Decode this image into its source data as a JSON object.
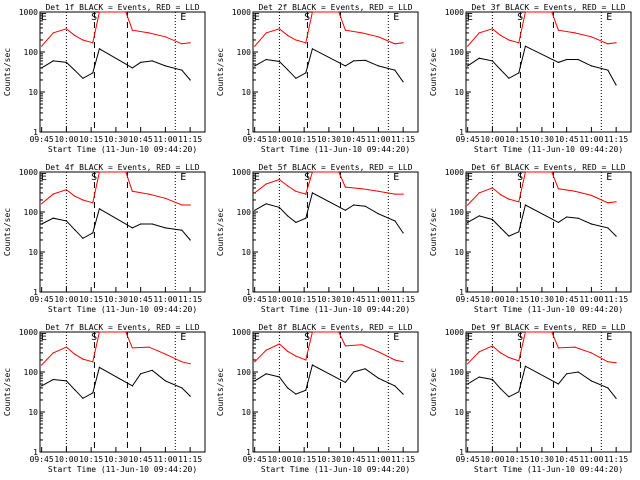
{
  "chart_data": [
    {
      "type": "line",
      "title": "Det 1f BLACK = Events, RED = LLD",
      "ylabel": "Counts/sec",
      "xlabel": "Start Time (11-Jun-10 09:44:20)",
      "x_ticks": [
        "09:45",
        "10:00",
        "10:15",
        "10:30",
        "10:45",
        "11:00",
        "11:15"
      ],
      "y_ticks": [
        "1",
        "10",
        "100",
        "1000"
      ],
      "yscale": "log",
      "ylim": [
        1,
        1000
      ],
      "markers": [
        "E",
        "S",
        "E"
      ],
      "series": [
        {
          "color": "#ff0000",
          "x": [
            "09:45",
            "09:52",
            "10:00",
            "10:05",
            "10:10",
            "10:16",
            "10:20",
            "10:36",
            "10:40",
            "10:50",
            "11:00",
            "11:10",
            "11:15"
          ],
          "values": [
            140,
            300,
            380,
            260,
            200,
            170,
            1000,
            1000,
            350,
            300,
            240,
            160,
            170
          ]
        },
        {
          "color": "#000000",
          "x": [
            "09:45",
            "09:52",
            "10:00",
            "10:05",
            "10:10",
            "10:16",
            "10:20",
            "10:40",
            "10:45",
            "10:52",
            "11:00",
            "11:10",
            "11:15"
          ],
          "values": [
            40,
            60,
            55,
            35,
            22,
            30,
            120,
            40,
            55,
            60,
            45,
            35,
            20
          ]
        }
      ]
    },
    {
      "type": "line",
      "title": "Det 2f BLACK = Events, RED = LLD",
      "ylabel": "Counts/sec",
      "xlabel": "Start Time (11-Jun-10 09:44:20)",
      "x_ticks": [
        "09:45",
        "10:00",
        "10:15",
        "10:30",
        "10:45",
        "11:00",
        "11:15"
      ],
      "y_ticks": [
        "1",
        "10",
        "100",
        "1000"
      ],
      "yscale": "log",
      "ylim": [
        1,
        1000
      ],
      "markers": [
        "E",
        "S",
        "E"
      ],
      "series": [
        {
          "color": "#ff0000",
          "x": [
            "09:45",
            "09:52",
            "10:00",
            "10:05",
            "10:10",
            "10:16",
            "10:20",
            "10:36",
            "10:40",
            "10:50",
            "11:00",
            "11:10",
            "11:15"
          ],
          "values": [
            140,
            300,
            380,
            260,
            200,
            170,
            1000,
            1000,
            350,
            300,
            240,
            160,
            170
          ]
        },
        {
          "color": "#000000",
          "x": [
            "09:45",
            "09:52",
            "10:00",
            "10:05",
            "10:10",
            "10:16",
            "10:20",
            "10:40",
            "10:45",
            "10:52",
            "11:00",
            "11:10",
            "11:15"
          ],
          "values": [
            45,
            65,
            58,
            36,
            22,
            30,
            120,
            45,
            60,
            62,
            45,
            35,
            18
          ]
        }
      ]
    },
    {
      "type": "line",
      "title": "Det 3f BLACK = Events, RED = LLD",
      "ylabel": "Counts/sec",
      "xlabel": "Start Time (11-Jun-10 09:44:20)",
      "x_ticks": [
        "09:45",
        "10:00",
        "10:15",
        "10:30",
        "10:45",
        "11:00",
        "11:15"
      ],
      "y_ticks": [
        "1",
        "10",
        "100",
        "1000"
      ],
      "yscale": "log",
      "ylim": [
        1,
        1000
      ],
      "markers": [
        "E",
        "S",
        "E"
      ],
      "series": [
        {
          "color": "#ff0000",
          "x": [
            "09:45",
            "09:52",
            "10:00",
            "10:05",
            "10:10",
            "10:16",
            "10:20",
            "10:36",
            "10:40",
            "10:50",
            "11:00",
            "11:10",
            "11:15"
          ],
          "values": [
            140,
            300,
            380,
            260,
            200,
            170,
            1000,
            1000,
            350,
            300,
            240,
            160,
            170
          ]
        },
        {
          "color": "#000000",
          "x": [
            "09:45",
            "09:52",
            "10:00",
            "10:05",
            "10:10",
            "10:16",
            "10:20",
            "10:40",
            "10:45",
            "10:52",
            "11:00",
            "11:10",
            "11:15"
          ],
          "values": [
            45,
            70,
            60,
            36,
            22,
            30,
            140,
            55,
            65,
            65,
            45,
            35,
            15
          ]
        }
      ]
    },
    {
      "type": "line",
      "title": "Det 4f BLACK = Events, RED = LLD",
      "ylabel": "Counts/sec",
      "xlabel": "Start Time (11-Jun-10 09:44:20)",
      "x_ticks": [
        "09:45",
        "10:00",
        "10:15",
        "10:30",
        "10:45",
        "11:00",
        "11:15"
      ],
      "y_ticks": [
        "1",
        "10",
        "100",
        "1000"
      ],
      "yscale": "log",
      "ylim": [
        1,
        1000
      ],
      "markers": [
        "E",
        "S",
        "E"
      ],
      "series": [
        {
          "color": "#ff0000",
          "x": [
            "09:45",
            "09:52",
            "10:00",
            "10:05",
            "10:10",
            "10:16",
            "10:20",
            "10:36",
            "10:40",
            "10:50",
            "11:00",
            "11:10",
            "11:15"
          ],
          "values": [
            160,
            280,
            360,
            250,
            200,
            170,
            1000,
            1000,
            330,
            280,
            220,
            150,
            150
          ]
        },
        {
          "color": "#000000",
          "x": [
            "09:45",
            "09:52",
            "10:00",
            "10:05",
            "10:10",
            "10:16",
            "10:20",
            "10:40",
            "10:45",
            "10:52",
            "11:00",
            "11:10",
            "11:15"
          ],
          "values": [
            50,
            70,
            60,
            36,
            22,
            30,
            120,
            40,
            50,
            50,
            40,
            35,
            20
          ]
        }
      ]
    },
    {
      "type": "line",
      "title": "Det 5f BLACK = Events, RED = LLD",
      "ylabel": "Counts/sec",
      "xlabel": "Start Time (11-Jun-10 09:44:20)",
      "x_ticks": [
        "09:45",
        "10:00",
        "10:15",
        "10:30",
        "10:45",
        "11:00",
        "11:15"
      ],
      "y_ticks": [
        "1",
        "10",
        "100",
        "1000"
      ],
      "yscale": "log",
      "ylim": [
        1,
        1000
      ],
      "markers": [
        "E",
        "S",
        "E"
      ],
      "series": [
        {
          "color": "#ff0000",
          "x": [
            "09:45",
            "09:52",
            "10:00",
            "10:05",
            "10:10",
            "10:16",
            "10:20",
            "10:36",
            "10:40",
            "10:50",
            "11:00",
            "11:10",
            "11:15"
          ],
          "values": [
            300,
            500,
            650,
            450,
            330,
            280,
            1000,
            1000,
            420,
            380,
            330,
            280,
            280
          ]
        },
        {
          "color": "#000000",
          "x": [
            "09:45",
            "09:52",
            "10:00",
            "10:05",
            "10:10",
            "10:16",
            "10:20",
            "10:40",
            "10:45",
            "10:52",
            "11:00",
            "11:10",
            "11:15"
          ],
          "values": [
            110,
            160,
            130,
            80,
            55,
            70,
            300,
            110,
            150,
            140,
            90,
            60,
            30
          ]
        }
      ]
    },
    {
      "type": "line",
      "title": "Det 6f BLACK = Events, RED = LLD",
      "ylabel": "Counts/sec",
      "xlabel": "Start Time (11-Jun-10 09:44:20)",
      "x_ticks": [
        "09:45",
        "10:00",
        "10:15",
        "10:30",
        "10:45",
        "11:00",
        "11:15"
      ],
      "y_ticks": [
        "1",
        "10",
        "100",
        "1000"
      ],
      "yscale": "log",
      "ylim": [
        1,
        1000
      ],
      "markers": [
        "E",
        "S",
        "E"
      ],
      "series": [
        {
          "color": "#ff0000",
          "x": [
            "09:45",
            "09:52",
            "10:00",
            "10:05",
            "10:10",
            "10:16",
            "10:20",
            "10:36",
            "10:40",
            "10:50",
            "11:00",
            "11:10",
            "11:15"
          ],
          "values": [
            150,
            300,
            400,
            270,
            210,
            180,
            1000,
            1000,
            380,
            330,
            260,
            170,
            180
          ]
        },
        {
          "color": "#000000",
          "x": [
            "09:45",
            "09:52",
            "10:00",
            "10:05",
            "10:10",
            "10:16",
            "10:20",
            "10:40",
            "10:45",
            "10:52",
            "11:00",
            "11:10",
            "11:15"
          ],
          "values": [
            55,
            80,
            65,
            40,
            25,
            32,
            150,
            55,
            75,
            70,
            50,
            40,
            25
          ]
        }
      ]
    },
    {
      "type": "line",
      "title": "Det 7f BLACK = Events, RED = LLD",
      "ylabel": "Counts/sec",
      "xlabel": "Start Time (11-Jun-10 09:44:20)",
      "x_ticks": [
        "09:45",
        "10:00",
        "10:15",
        "10:30",
        "10:45",
        "11:00",
        "11:15"
      ],
      "y_ticks": [
        "1",
        "10",
        "100",
        "1000"
      ],
      "yscale": "log",
      "ylim": [
        1,
        1000
      ],
      "markers": [
        "E",
        "S",
        "E"
      ],
      "series": [
        {
          "color": "#ff0000",
          "x": [
            "09:45",
            "09:52",
            "10:00",
            "10:05",
            "10:10",
            "10:16",
            "10:20",
            "10:36",
            "10:40",
            "10:50",
            "11:00",
            "11:10",
            "11:15"
          ],
          "values": [
            150,
            300,
            420,
            280,
            210,
            180,
            1000,
            1000,
            400,
            420,
            280,
            180,
            160
          ]
        },
        {
          "color": "#000000",
          "x": [
            "09:45",
            "09:52",
            "10:00",
            "10:05",
            "10:10",
            "10:16",
            "10:20",
            "10:40",
            "10:45",
            "10:52",
            "11:00",
            "11:10",
            "11:15"
          ],
          "values": [
            45,
            65,
            60,
            36,
            22,
            30,
            130,
            45,
            90,
            110,
            60,
            40,
            25
          ]
        }
      ]
    },
    {
      "type": "line",
      "title": "Det 8f BLACK = Events, RED = LLD",
      "ylabel": "Counts/sec",
      "xlabel": "Start Time (11-Jun-10 09:44:20)",
      "x_ticks": [
        "09:45",
        "10:00",
        "10:15",
        "10:30",
        "10:45",
        "11:00",
        "11:15"
      ],
      "y_ticks": [
        "1",
        "10",
        "100",
        "1000"
      ],
      "yscale": "log",
      "ylim": [
        1,
        1000
      ],
      "markers": [
        "E",
        "S",
        "E"
      ],
      "series": [
        {
          "color": "#ff0000",
          "x": [
            "09:45",
            "09:52",
            "10:00",
            "10:05",
            "10:10",
            "10:16",
            "10:20",
            "10:36",
            "10:40",
            "10:50",
            "11:00",
            "11:10",
            "11:15"
          ],
          "values": [
            180,
            350,
            500,
            330,
            250,
            200,
            1000,
            1000,
            450,
            480,
            320,
            200,
            180
          ]
        },
        {
          "color": "#000000",
          "x": [
            "09:45",
            "09:52",
            "10:00",
            "10:05",
            "10:10",
            "10:16",
            "10:20",
            "10:40",
            "10:45",
            "10:52",
            "11:00",
            "11:10",
            "11:15"
          ],
          "values": [
            60,
            90,
            75,
            40,
            28,
            35,
            150,
            55,
            100,
            120,
            70,
            45,
            28
          ]
        }
      ]
    },
    {
      "type": "line",
      "title": "Det 9f BLACK = Events, RED = LLD",
      "ylabel": "Counts/sec",
      "xlabel": "Start Time (11-Jun-10 09:44:20)",
      "x_ticks": [
        "09:45",
        "10:00",
        "10:15",
        "10:30",
        "10:45",
        "11:00",
        "11:15"
      ],
      "y_ticks": [
        "1",
        "10",
        "100",
        "1000"
      ],
      "yscale": "log",
      "ylim": [
        1,
        1000
      ],
      "markers": [
        "E",
        "S",
        "E"
      ],
      "series": [
        {
          "color": "#ff0000",
          "x": [
            "09:45",
            "09:52",
            "10:00",
            "10:05",
            "10:10",
            "10:16",
            "10:20",
            "10:36",
            "10:40",
            "10:50",
            "11:00",
            "11:10",
            "11:15"
          ],
          "values": [
            160,
            320,
            450,
            300,
            230,
            190,
            1000,
            1000,
            400,
            420,
            300,
            180,
            170
          ]
        },
        {
          "color": "#000000",
          "x": [
            "09:45",
            "09:52",
            "10:00",
            "10:05",
            "10:10",
            "10:16",
            "10:20",
            "10:40",
            "10:45",
            "10:52",
            "11:00",
            "11:10",
            "11:15"
          ],
          "values": [
            50,
            75,
            65,
            38,
            24,
            32,
            140,
            50,
            90,
            100,
            60,
            40,
            22
          ]
        }
      ]
    }
  ]
}
